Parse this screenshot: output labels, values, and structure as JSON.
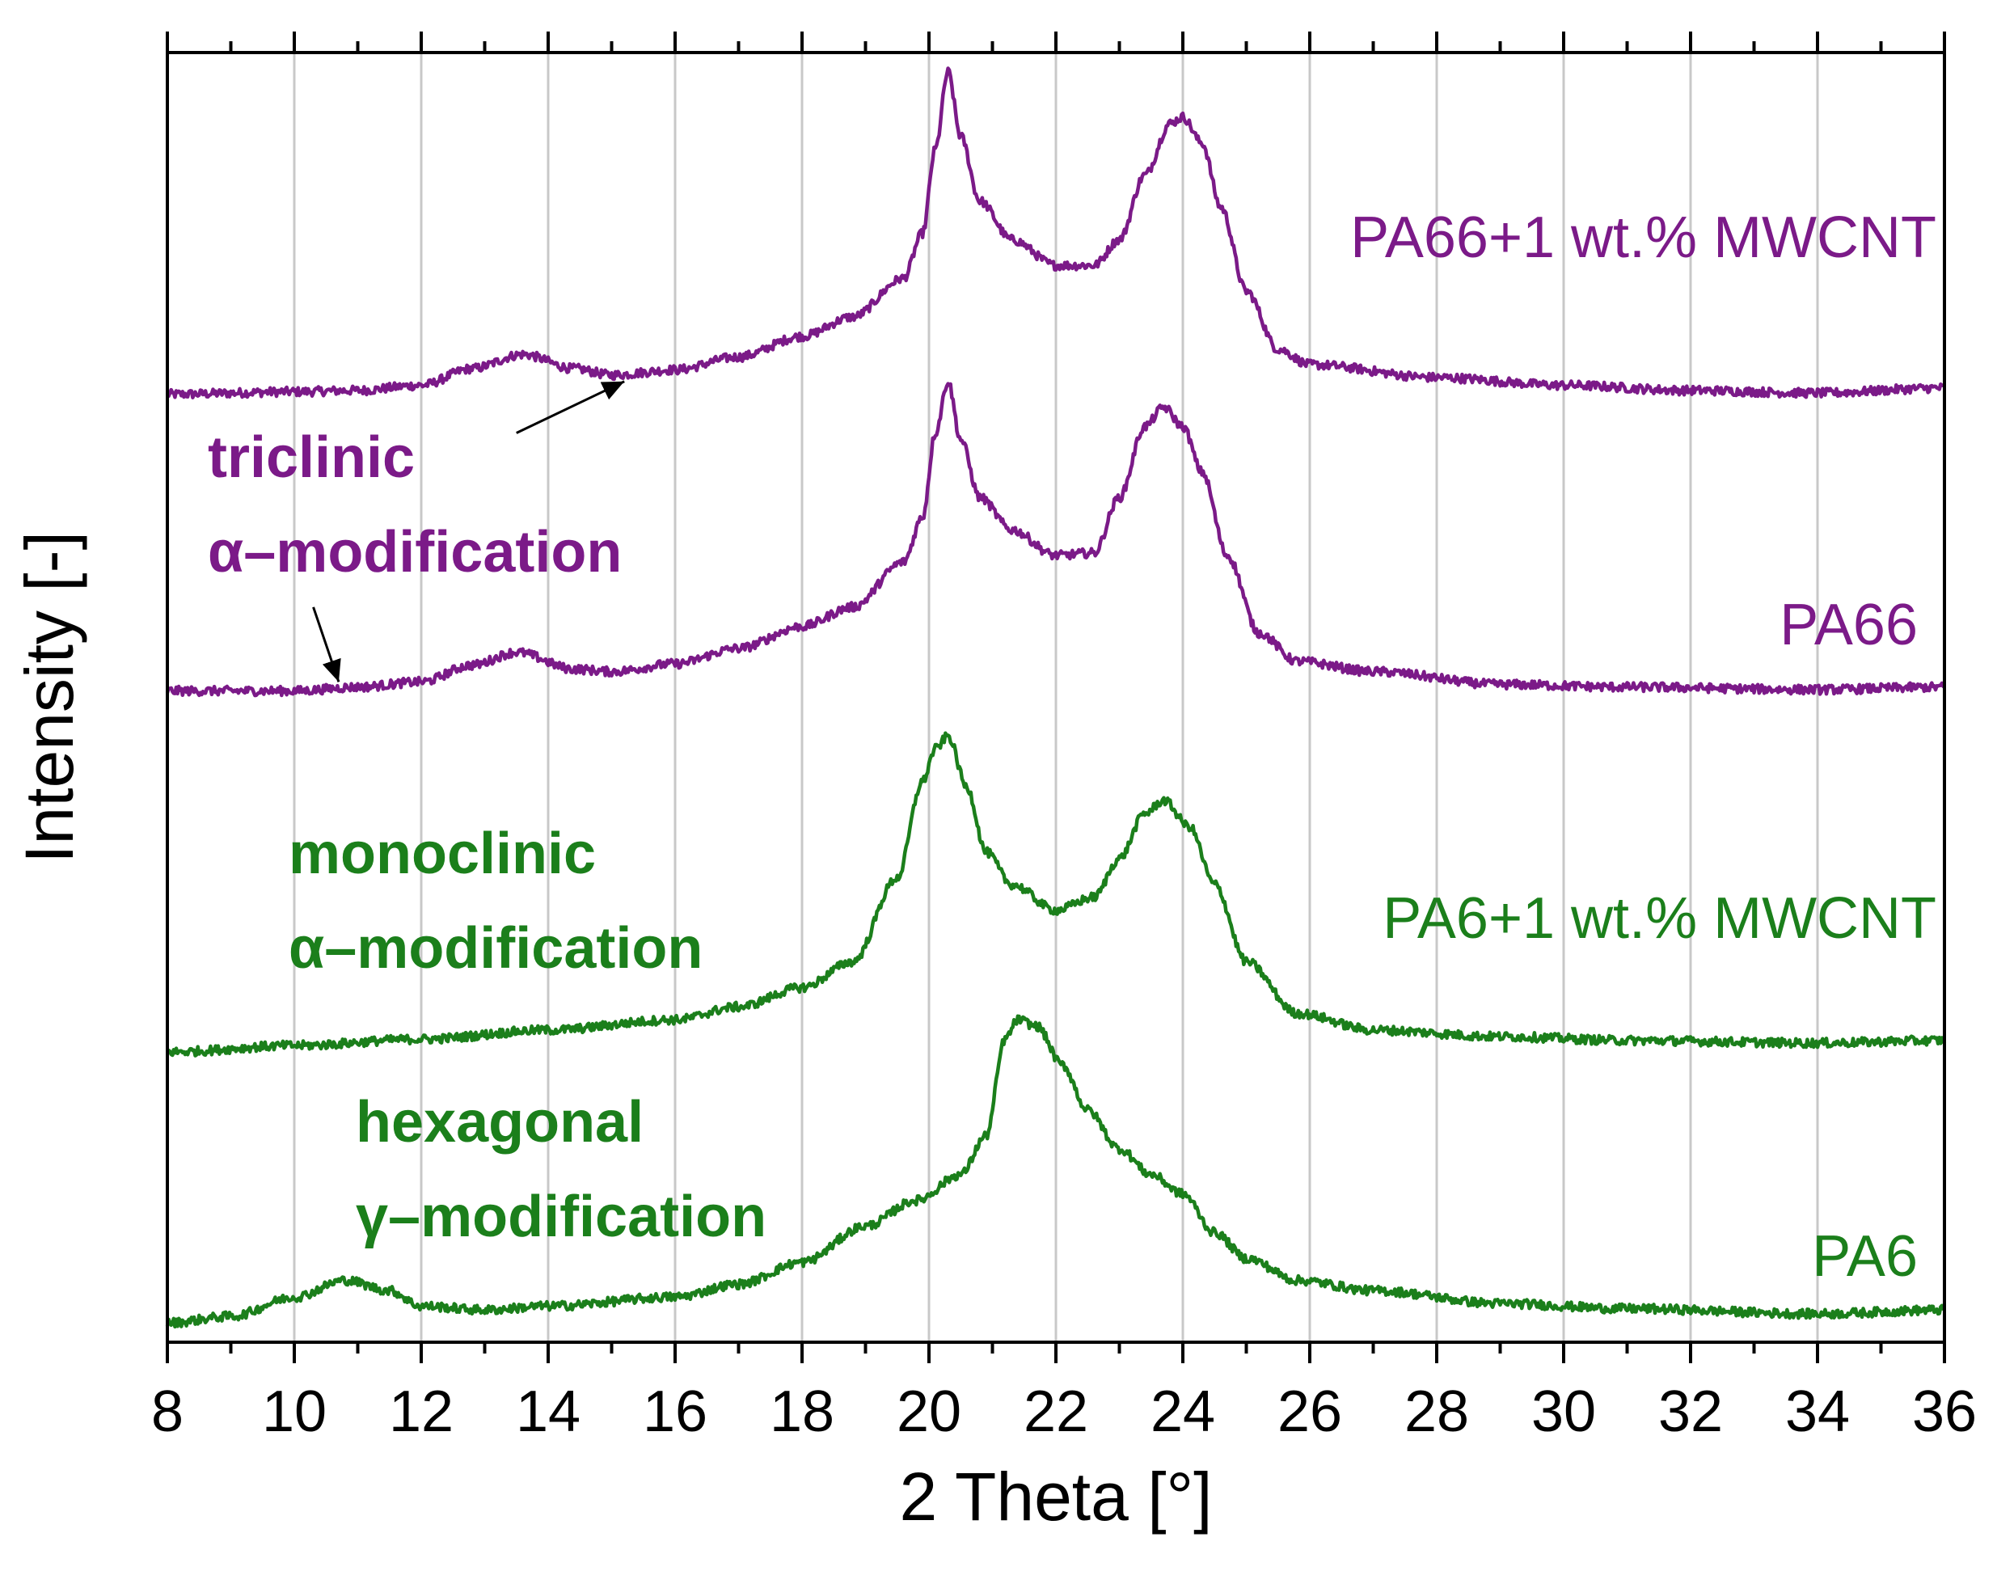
{
  "chart_data": {
    "type": "line",
    "title": "",
    "xlabel": "2 Theta [°]",
    "ylabel": "Intensity [-]",
    "xlim": [
      8,
      36
    ],
    "ylim": [
      0,
      10
    ],
    "x_ticks": [
      "8",
      "10",
      "12",
      "14",
      "16",
      "18",
      "20",
      "22",
      "24",
      "26",
      "28",
      "30",
      "32",
      "34",
      "36"
    ],
    "y_ticks_shown": false,
    "grid": "vertical",
    "colors": {
      "PA66": "#7b1a88",
      "PA6": "#1b7f1b",
      "axis": "#000000",
      "grid": "#c8c8c8"
    },
    "series": [
      {
        "name": "PA66+1 wt.% MWCNT",
        "color": "#7b1a88",
        "baseline": 7.35,
        "points": [
          [
            8,
            7.35
          ],
          [
            10,
            7.37
          ],
          [
            11,
            7.38
          ],
          [
            12,
            7.42
          ],
          [
            12.8,
            7.55
          ],
          [
            13.6,
            7.66
          ],
          [
            14.4,
            7.55
          ],
          [
            15,
            7.5
          ],
          [
            16,
            7.54
          ],
          [
            17,
            7.64
          ],
          [
            18,
            7.8
          ],
          [
            18.8,
            7.95
          ],
          [
            19.6,
            8.25
          ],
          [
            19.9,
            8.6
          ],
          [
            20.1,
            9.25
          ],
          [
            20.3,
            9.85
          ],
          [
            20.5,
            9.35
          ],
          [
            20.8,
            8.85
          ],
          [
            21.3,
            8.55
          ],
          [
            22,
            8.35
          ],
          [
            22.6,
            8.35
          ],
          [
            23,
            8.55
          ],
          [
            23.4,
            9.05
          ],
          [
            23.8,
            9.45
          ],
          [
            24,
            9.5
          ],
          [
            24.3,
            9.3
          ],
          [
            24.6,
            8.8
          ],
          [
            25,
            8.15
          ],
          [
            25.5,
            7.7
          ],
          [
            26,
            7.58
          ],
          [
            28,
            7.48
          ],
          [
            30,
            7.42
          ],
          [
            32,
            7.38
          ],
          [
            34,
            7.36
          ],
          [
            36,
            7.4
          ]
        ]
      },
      {
        "name": "PA66",
        "color": "#7b1a88",
        "baseline": 5.05,
        "points": [
          [
            8,
            5.05
          ],
          [
            10,
            5.05
          ],
          [
            11,
            5.08
          ],
          [
            12,
            5.12
          ],
          [
            12.8,
            5.25
          ],
          [
            13.5,
            5.35
          ],
          [
            14.4,
            5.22
          ],
          [
            15,
            5.2
          ],
          [
            16,
            5.26
          ],
          [
            17,
            5.38
          ],
          [
            18,
            5.55
          ],
          [
            18.8,
            5.7
          ],
          [
            19.6,
            6.05
          ],
          [
            19.9,
            6.4
          ],
          [
            20.1,
            7.05
          ],
          [
            20.3,
            7.45
          ],
          [
            20.5,
            7.0
          ],
          [
            20.8,
            6.55
          ],
          [
            21.3,
            6.3
          ],
          [
            22,
            6.1
          ],
          [
            22.6,
            6.12
          ],
          [
            23,
            6.55
          ],
          [
            23.4,
            7.1
          ],
          [
            23.7,
            7.25
          ],
          [
            24,
            7.1
          ],
          [
            24.3,
            6.75
          ],
          [
            24.7,
            6.1
          ],
          [
            25.2,
            5.5
          ],
          [
            25.8,
            5.28
          ],
          [
            27,
            5.2
          ],
          [
            29,
            5.1
          ],
          [
            31,
            5.08
          ],
          [
            34,
            5.06
          ],
          [
            36,
            5.08
          ]
        ]
      },
      {
        "name": "PA6+1 wt.% MWCNT",
        "color": "#1b7f1b",
        "baseline": 2.25,
        "points": [
          [
            8,
            2.25
          ],
          [
            10,
            2.3
          ],
          [
            12,
            2.35
          ],
          [
            14,
            2.42
          ],
          [
            16,
            2.5
          ],
          [
            17,
            2.6
          ],
          [
            18,
            2.75
          ],
          [
            18.8,
            2.95
          ],
          [
            19.5,
            3.6
          ],
          [
            19.9,
            4.35
          ],
          [
            20.1,
            4.6
          ],
          [
            20.3,
            4.7
          ],
          [
            20.6,
            4.3
          ],
          [
            20.9,
            3.8
          ],
          [
            21.3,
            3.55
          ],
          [
            22,
            3.35
          ],
          [
            22.6,
            3.45
          ],
          [
            23,
            3.75
          ],
          [
            23.4,
            4.1
          ],
          [
            23.7,
            4.2
          ],
          [
            24.1,
            4.0
          ],
          [
            24.5,
            3.55
          ],
          [
            25,
            2.95
          ],
          [
            25.8,
            2.55
          ],
          [
            27,
            2.42
          ],
          [
            29,
            2.37
          ],
          [
            31,
            2.34
          ],
          [
            34,
            2.32
          ],
          [
            36,
            2.34
          ]
        ]
      },
      {
        "name": "PA6",
        "color": "#1b7f1b",
        "baseline": 0.15,
        "points": [
          [
            8,
            0.15
          ],
          [
            9,
            0.2
          ],
          [
            10,
            0.35
          ],
          [
            10.8,
            0.48
          ],
          [
            11.5,
            0.4
          ],
          [
            12,
            0.28
          ],
          [
            13,
            0.25
          ],
          [
            14,
            0.28
          ],
          [
            16,
            0.35
          ],
          [
            17,
            0.45
          ],
          [
            18,
            0.62
          ],
          [
            19,
            0.9
          ],
          [
            19.8,
            1.1
          ],
          [
            20.5,
            1.3
          ],
          [
            20.9,
            1.6
          ],
          [
            21.2,
            2.35
          ],
          [
            21.4,
            2.5
          ],
          [
            21.7,
            2.45
          ],
          [
            22.1,
            2.15
          ],
          [
            22.5,
            1.8
          ],
          [
            23,
            1.5
          ],
          [
            23.5,
            1.3
          ],
          [
            24,
            1.15
          ],
          [
            24.5,
            0.85
          ],
          [
            25,
            0.65
          ],
          [
            25.8,
            0.48
          ],
          [
            27,
            0.4
          ],
          [
            29,
            0.3
          ],
          [
            31,
            0.26
          ],
          [
            34,
            0.22
          ],
          [
            36,
            0.25
          ]
        ]
      }
    ],
    "series_labels": [
      {
        "text": "PA66+1 wt.% MWCNT",
        "color": "#7b1a88"
      },
      {
        "text": "PA66",
        "color": "#7b1a88"
      },
      {
        "text": "PA6+1 wt.% MWCNT",
        "color": "#1b7f1b"
      },
      {
        "text": "PA6",
        "color": "#1b7f1b"
      }
    ],
    "annotations": [
      {
        "line1": "triclinic",
        "line2": "α–modification",
        "color": "#7b1a88"
      },
      {
        "line1": "monoclinic",
        "line2": "α–modification",
        "color": "#1b7f1b"
      },
      {
        "line1": "hexagonal",
        "line2": "γ–modification",
        "color": "#1b7f1b"
      }
    ],
    "arrows": [
      {
        "from": [
          13.5,
          7.05
        ],
        "to": [
          15.2,
          7.45
        ],
        "color": "#000000"
      },
      {
        "from": [
          10.3,
          5.7
        ],
        "to": [
          10.7,
          5.12
        ],
        "color": "#000000"
      }
    ]
  }
}
